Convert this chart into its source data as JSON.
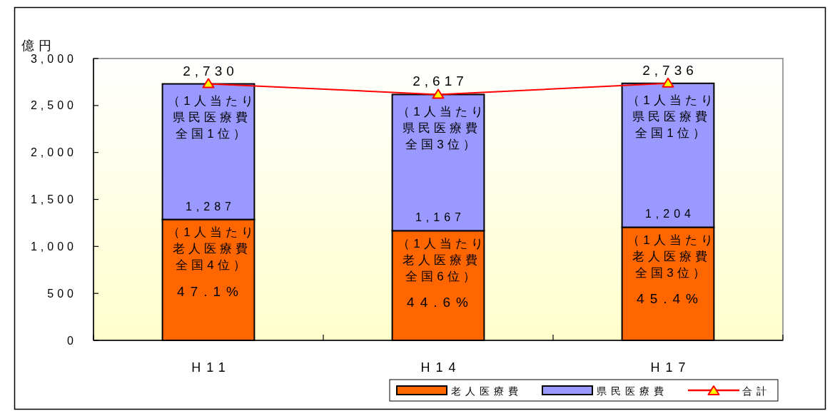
{
  "chart_data": {
    "type": "bar",
    "stacked": true,
    "ylabel": "億円",
    "categories": [
      "H11",
      "H14",
      "H17"
    ],
    "series": [
      {
        "name": "老人医療費",
        "color": "#ff6600",
        "values": [
          1287,
          1167,
          1204
        ],
        "value_labels": [
          "1,287",
          "1,167",
          "1,204"
        ]
      },
      {
        "name": "県民医療費",
        "color": "#9999ff",
        "values": [
          1443,
          1450,
          1532
        ]
      },
      {
        "name": "合計",
        "type": "line",
        "color": "#ff0000",
        "colors": [
          "#ffff00",
          "#ffff00",
          "#ffff00"
        ],
        "marker": "triangle",
        "values": [
          2730,
          2617,
          2736
        ],
        "value_labels": [
          "2,730",
          "2,617",
          "2,736"
        ]
      }
    ],
    "ylim": [
      0,
      3000
    ],
    "yticks": [
      0,
      500,
      {
        "value": 1000,
        "label": "1,000"
      },
      {
        "value": 1500,
        "label": "1,500"
      },
      {
        "value": 2000,
        "label": "2,000"
      },
      {
        "value": 2500,
        "label": "2,500"
      },
      {
        "value": 3000,
        "label": "3,000"
      }
    ],
    "legend": "bottom right",
    "annotations": [
      {
        "text": "（1人当たり県民医療費全国1位）",
        "x": "H11",
        "y": 2730
      },
      {
        "text": "（1人当たり県民医療費全国3位）",
        "x": "H14",
        "y": 2617
      },
      {
        "text": "（1人当たり県民医療費全国1位）",
        "x": "H17",
        "y": 2736
      },
      {
        "text": "（1人当たり老人医療費全国4位）",
        "x": "H11",
        "y": 1287
      },
      "47.1%",
      {
        "text": "（1人当たり老人医療費全国6位）",
        "x": "H14",
        "y": 1167
      },
      "44.6%",
      {
        "text": "（1人当たり老人医療費全国3位）",
        "x": "H17",
        "y": 1204
      },
      "45.4%"
    ]
  }
}
